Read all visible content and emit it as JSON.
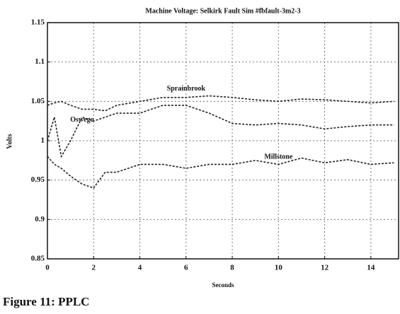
{
  "chart_data": {
    "type": "line",
    "title": "Machine Voltage: Selkirk Fault Sim #fbfault-3m2-3",
    "x_label": "Seconds",
    "y_label": "Volts",
    "caption": "Figure 11: PPLC",
    "x": [
      0,
      0.3,
      0.6,
      1,
      1.5,
      2,
      2.5,
      3,
      4,
      5,
      6,
      7,
      8,
      9,
      10,
      11,
      12,
      13,
      14,
      15
    ],
    "series": [
      {
        "name": "Sprainbrook",
        "color": "#222222",
        "values": [
          1.045,
          1.048,
          1.05,
          1.045,
          1.04,
          1.04,
          1.038,
          1.045,
          1.05,
          1.055,
          1.055,
          1.057,
          1.055,
          1.052,
          1.05,
          1.053,
          1.052,
          1.05,
          1.048,
          1.05
        ]
      },
      {
        "name": "Oswego",
        "color": "#222222",
        "values": [
          1.0,
          1.03,
          0.98,
          1.0,
          1.03,
          1.025,
          1.03,
          1.035,
          1.035,
          1.045,
          1.045,
          1.035,
          1.022,
          1.02,
          1.022,
          1.02,
          1.015,
          1.018,
          1.02,
          1.02
        ]
      },
      {
        "name": "Millstone",
        "color": "#222222",
        "values": [
          0.98,
          0.97,
          0.965,
          0.955,
          0.945,
          0.94,
          0.96,
          0.96,
          0.97,
          0.97,
          0.965,
          0.97,
          0.97,
          0.975,
          0.97,
          0.978,
          0.972,
          0.976,
          0.97,
          0.972
        ]
      }
    ],
    "xlim": [
      0,
      15.2
    ],
    "xticks": [
      0,
      2,
      4,
      6,
      8,
      10,
      12,
      14
    ],
    "ylim": [
      0.85,
      1.15
    ],
    "yticks": [
      0.85,
      0.9,
      0.95,
      1,
      1.05,
      1.1,
      1.15
    ],
    "grid": true,
    "line_style": "dashed"
  }
}
